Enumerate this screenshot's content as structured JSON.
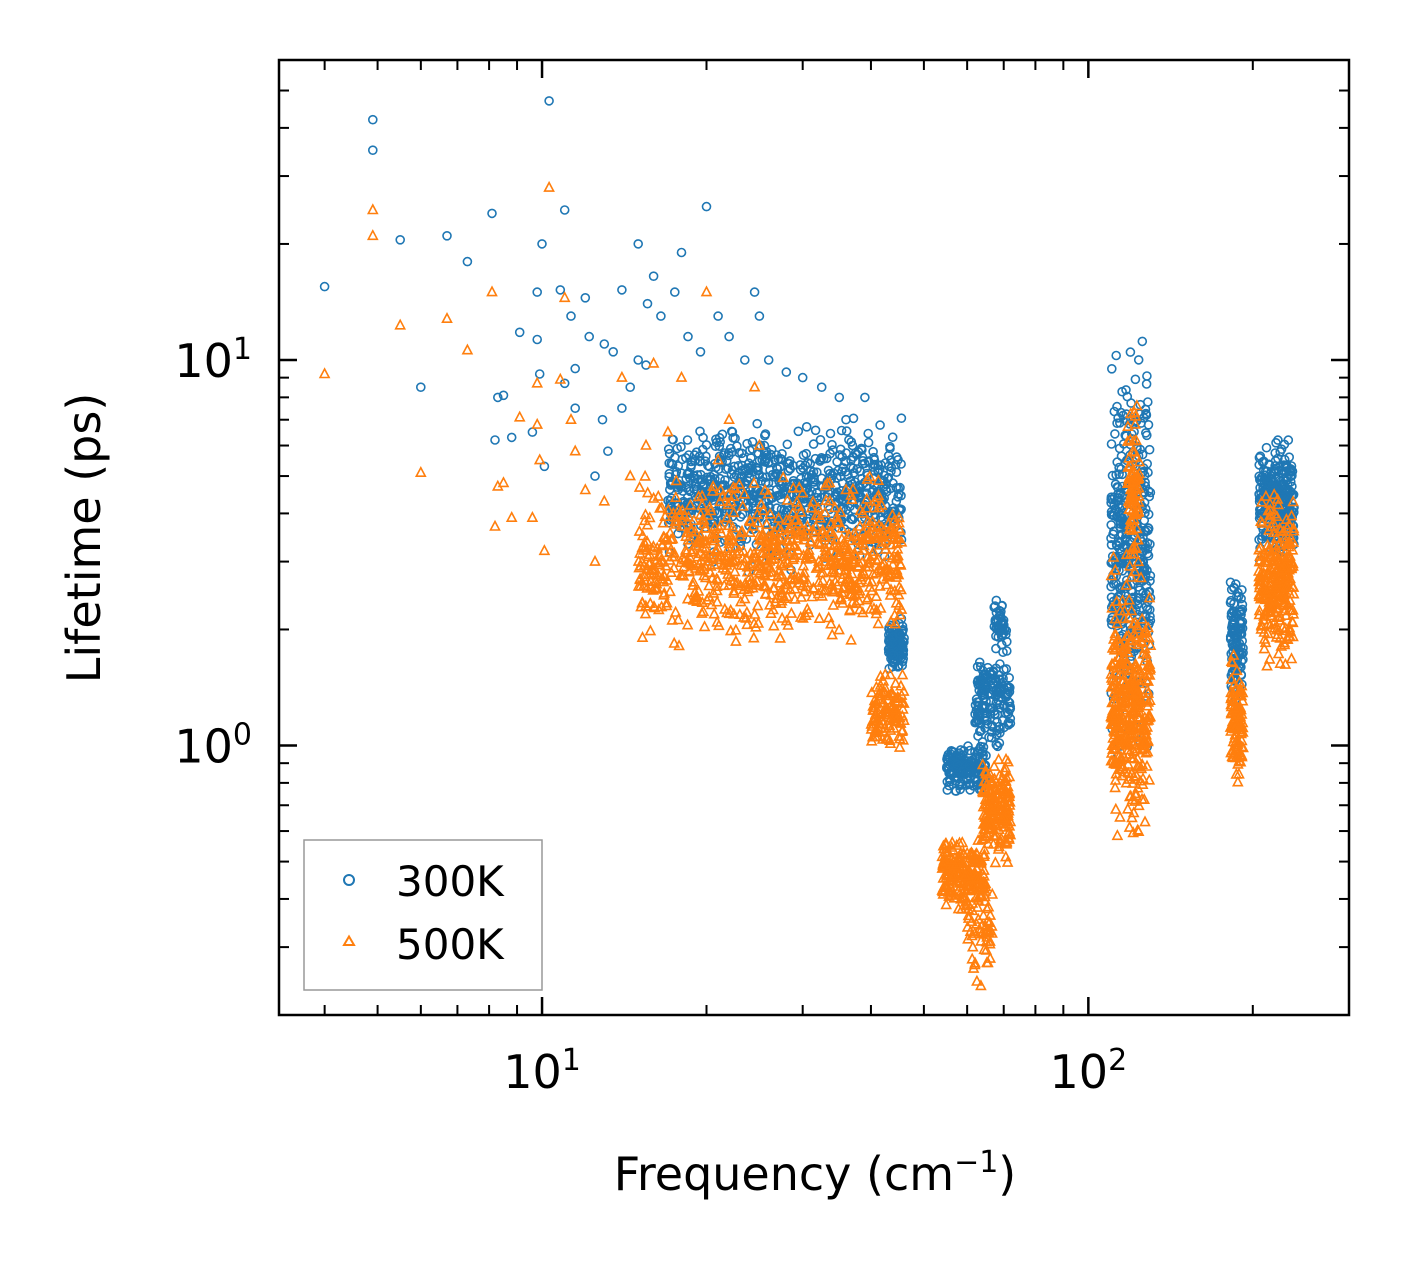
{
  "chart_data": {
    "type": "scatter",
    "title": "",
    "xlabel": "Frequency (cm",
    "xlabel_sup": "−1",
    "xlabel_end": ")",
    "ylabel": "Lifetime (ps)",
    "xscale": "log",
    "yscale": "log",
    "xlim": [
      3.3,
      300
    ],
    "ylim": [
      0.2,
      60
    ],
    "x_ticks": [
      {
        "value": 10,
        "base": "10",
        "exp": "1"
      },
      {
        "value": 100,
        "base": "10",
        "exp": "2"
      }
    ],
    "y_ticks": [
      {
        "value": 1,
        "base": "10",
        "exp": "0"
      },
      {
        "value": 10,
        "base": "10",
        "exp": "1"
      }
    ],
    "legend_position": "lower-left",
    "series": [
      {
        "name": "300K",
        "marker": "circle",
        "color": "#1f77b4",
        "scatter_points": [
          [
            4.0,
            15.5
          ],
          [
            4.9,
            42
          ],
          [
            4.9,
            35
          ],
          [
            5.5,
            20.5
          ],
          [
            6.0,
            8.5
          ],
          [
            6.7,
            21
          ],
          [
            7.3,
            18
          ],
          [
            8.1,
            24
          ],
          [
            8.2,
            6.2
          ],
          [
            8.3,
            8.0
          ],
          [
            8.5,
            8.1
          ],
          [
            8.8,
            6.3
          ],
          [
            9.1,
            11.8
          ],
          [
            9.6,
            6.5
          ],
          [
            9.8,
            11.3
          ],
          [
            9.8,
            15.0
          ],
          [
            9.9,
            9.2
          ],
          [
            10.0,
            20
          ],
          [
            10.1,
            5.3
          ],
          [
            10.3,
            47
          ],
          [
            10.8,
            15.2
          ],
          [
            11.0,
            24.5
          ],
          [
            11.0,
            8.7
          ],
          [
            11.3,
            13.0
          ],
          [
            11.5,
            9.5
          ],
          [
            11.5,
            7.5
          ],
          [
            12.0,
            14.5
          ],
          [
            12.2,
            11.5
          ],
          [
            12.5,
            5.0
          ],
          [
            12.9,
            7.0
          ],
          [
            13.0,
            11.0
          ],
          [
            13.2,
            5.8
          ],
          [
            13.5,
            10.5
          ],
          [
            14.0,
            15.2
          ],
          [
            14.0,
            7.5
          ],
          [
            14.5,
            8.5
          ],
          [
            15.0,
            20
          ],
          [
            15.0,
            10
          ],
          [
            15.5,
            9.7
          ],
          [
            15.6,
            14.0
          ],
          [
            16.0,
            16.5
          ],
          [
            16.5,
            13.0
          ],
          [
            17.5,
            15.0
          ],
          [
            18.0,
            19.0
          ],
          [
            18.5,
            11.5
          ],
          [
            19.5,
            10.5
          ],
          [
            20.0,
            25
          ],
          [
            21.0,
            13.0
          ],
          [
            22.0,
            11.5
          ],
          [
            23.5,
            10.0
          ],
          [
            24.5,
            15.0
          ],
          [
            25.0,
            13.0
          ],
          [
            26.0,
            10.0
          ],
          [
            28.0,
            9.3
          ],
          [
            30.0,
            9.0
          ],
          [
            32.5,
            8.5
          ],
          [
            35.0,
            8.0
          ],
          [
            36.0,
            7.0
          ],
          [
            37.0,
            6.0
          ],
          [
            39.0,
            8.0
          ],
          [
            41.5,
            4.2
          ]
        ],
        "clusters": [
          {
            "x_range": [
              17.0,
              45.5
            ],
            "y_range": [
              2.7,
              7.6
            ],
            "count": 850
          },
          {
            "x_range": [
              43.0,
              46.0
            ],
            "y_range": [
              1.5,
              2.2
            ],
            "count": 110
          },
          {
            "x_range": [
              55.0,
              65.0
            ],
            "y_range": [
              0.72,
              1.05
            ],
            "count": 160
          },
          {
            "x_range": [
              62.0,
              72.0
            ],
            "y_range": [
              0.9,
              1.9
            ],
            "count": 160
          },
          {
            "x_range": [
              67.0,
              71.0
            ],
            "y_range": [
              1.6,
              2.6
            ],
            "count": 50
          },
          {
            "x_range": [
              110.0,
              130.0
            ],
            "y_range": [
              0.8,
              13.0
            ],
            "count": 420
          },
          {
            "x_range": [
              182.0,
              192.0
            ],
            "y_range": [
              1.2,
              3.0
            ],
            "count": 110
          },
          {
            "x_range": [
              205.0,
              238.0
            ],
            "y_range": [
              2.8,
              6.5
            ],
            "count": 280
          }
        ]
      },
      {
        "name": "500K",
        "marker": "triangle",
        "color": "#ff7f0e",
        "scatter_points": [
          [
            4.0,
            9.2
          ],
          [
            4.9,
            24.5
          ],
          [
            4.9,
            21
          ],
          [
            5.5,
            12.3
          ],
          [
            6.0,
            5.1
          ],
          [
            6.7,
            12.8
          ],
          [
            7.3,
            10.6
          ],
          [
            8.1,
            15
          ],
          [
            8.2,
            3.7
          ],
          [
            8.3,
            4.7
          ],
          [
            8.5,
            4.8
          ],
          [
            8.8,
            3.9
          ],
          [
            9.1,
            7.1
          ],
          [
            9.6,
            3.9
          ],
          [
            9.8,
            6.8
          ],
          [
            9.8,
            8.7
          ],
          [
            9.9,
            5.5
          ],
          [
            10.1,
            3.2
          ],
          [
            10.3,
            28
          ],
          [
            10.8,
            8.9
          ],
          [
            11.0,
            14.5
          ],
          [
            11.3,
            7.0
          ],
          [
            11.5,
            5.8
          ],
          [
            12.0,
            4.6
          ],
          [
            12.5,
            3.0
          ],
          [
            13.0,
            4.3
          ],
          [
            14.0,
            9.0
          ],
          [
            14.5,
            5.0
          ],
          [
            15.5,
            6.0
          ],
          [
            16.0,
            9.8
          ],
          [
            17.0,
            6.5
          ],
          [
            18.0,
            9.0
          ],
          [
            20.0,
            15.0
          ],
          [
            21.0,
            5.5
          ],
          [
            22.0,
            7.0
          ],
          [
            24.5,
            8.5
          ],
          [
            25.0,
            6.0
          ]
        ],
        "clusters": [
          {
            "x_range": [
              15.0,
              45.5
            ],
            "y_range": [
              1.7,
              5.5
            ],
            "count": 850
          },
          {
            "x_range": [
              40.0,
              46.0
            ],
            "y_range": [
              0.92,
              1.6
            ],
            "count": 120
          },
          {
            "x_range": [
              54.0,
              65.0
            ],
            "y_range": [
              0.36,
              0.62
            ],
            "count": 200
          },
          {
            "x_range": [
              60.0,
              67.0
            ],
            "y_range": [
              0.22,
              0.5
            ],
            "count": 60
          },
          {
            "x_range": [
              64.0,
              72.0
            ],
            "y_range": [
              0.45,
              1.0
            ],
            "count": 180
          },
          {
            "x_range": [
              110.0,
              130.0
            ],
            "y_range": [
              0.48,
              3.5
            ],
            "count": 380
          },
          {
            "x_range": [
              118.0,
              124.0
            ],
            "y_range": [
              2.5,
              9.0
            ],
            "count": 80
          },
          {
            "x_range": [
              182.0,
              192.0
            ],
            "y_range": [
              0.72,
              1.8
            ],
            "count": 110
          },
          {
            "x_range": [
              205.0,
              238.0
            ],
            "y_range": [
              1.4,
              5.0
            ],
            "count": 280
          }
        ]
      }
    ]
  }
}
